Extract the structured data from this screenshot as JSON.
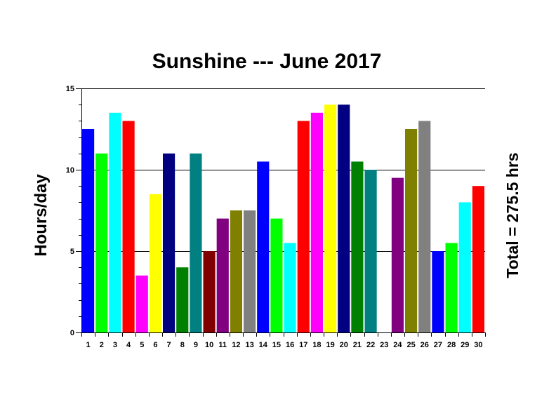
{
  "chart_data": {
    "type": "bar",
    "title": "Sunshine --- June 2017",
    "xlabel": "",
    "ylabel": "Hours/day",
    "annotation": "Total = 275.5 hrs",
    "ylim": [
      0,
      15
    ],
    "yticks": [
      "0",
      "5",
      "10",
      "15"
    ],
    "grid": true,
    "categories": [
      "1",
      "2",
      "3",
      "4",
      "5",
      "6",
      "7",
      "8",
      "9",
      "10",
      "11",
      "12",
      "13",
      "14",
      "15",
      "16",
      "17",
      "18",
      "19",
      "20",
      "21",
      "22",
      "23",
      "24",
      "25",
      "26",
      "27",
      "28",
      "29",
      "30"
    ],
    "values": [
      12.5,
      11,
      13.5,
      13,
      3.5,
      8.5,
      11,
      4,
      11,
      5,
      7,
      7.5,
      7.5,
      10.5,
      7,
      5.5,
      13,
      13.5,
      14,
      14,
      10.5,
      10,
      0,
      9.5,
      12.5,
      13,
      5,
      5.5,
      8,
      9
    ],
    "colors": [
      "#0000ff",
      "#00ff00",
      "#00ffff",
      "#ff0000",
      "#ff00ff",
      "#ffff00",
      "#000080",
      "#008000",
      "#008080",
      "#800000",
      "#800080",
      "#808000",
      "#808080",
      "#0000ff",
      "#00ff00",
      "#00ffff",
      "#ff0000",
      "#ff00ff",
      "#ffff00",
      "#000080",
      "#008000",
      "#008080",
      "#800000",
      "#800080",
      "#808000",
      "#808080",
      "#0000ff",
      "#00ff00",
      "#00ffff",
      "#ff0000"
    ]
  }
}
